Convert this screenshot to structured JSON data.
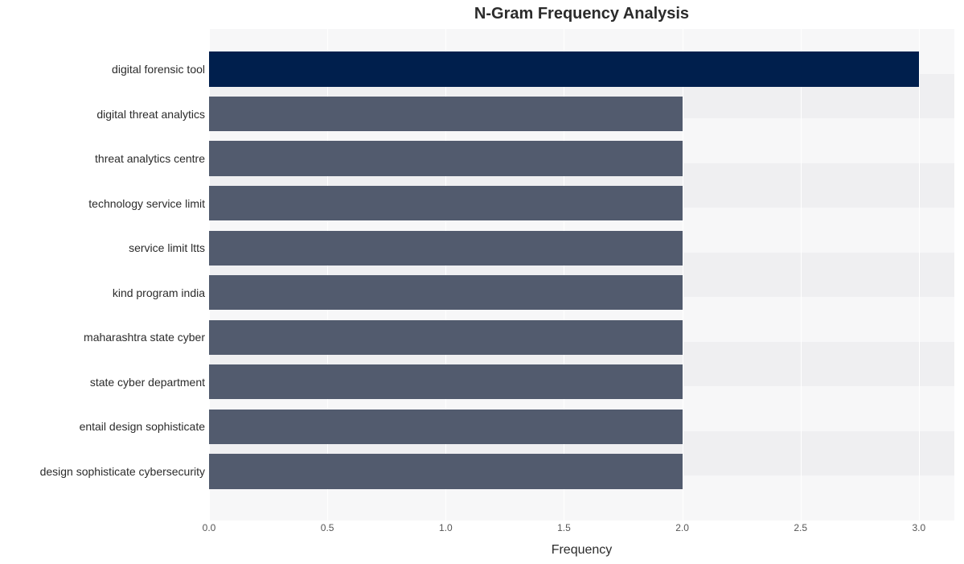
{
  "chart": {
    "type": "horizontal-bar",
    "title": "N-Gram Frequency Analysis",
    "title_fontsize": 20,
    "xlabel": "Frequency",
    "axis_label_fontsize": 16,
    "ylabel_fontsize": 14,
    "xtick_fontsize": 12,
    "xlim": [
      0.0,
      3.15
    ],
    "xtick_values": [
      0.0,
      0.5,
      1.0,
      1.5,
      2.0,
      2.5,
      3.0
    ],
    "xtick_labels": [
      "0.0",
      "0.5",
      "1.0",
      "1.5",
      "2.0",
      "2.5",
      "3.0"
    ],
    "categories": [
      "digital forensic tool",
      "digital threat analytics",
      "threat analytics centre",
      "technology service limit",
      "service limit ltts",
      "kind program india",
      "maharashtra state cyber",
      "state cyber department",
      "entail design sophisticate",
      "design sophisticate cybersecurity"
    ],
    "values": [
      3,
      2,
      2,
      2,
      2,
      2,
      2,
      2,
      2,
      2
    ],
    "bar_colors": [
      "#001f4d",
      "#525b6e",
      "#525b6e",
      "#525b6e",
      "#525b6e",
      "#525b6e",
      "#525b6e",
      "#525b6e",
      "#525b6e",
      "#525b6e"
    ],
    "bar_fill_ratio": 0.78,
    "band_colors": [
      "#f7f7f8",
      "#efeff1"
    ],
    "grid_color": "#ffffff",
    "background_color": "#ffffff",
    "text_color": "#2b2b2b",
    "tick_color": "#555555"
  }
}
